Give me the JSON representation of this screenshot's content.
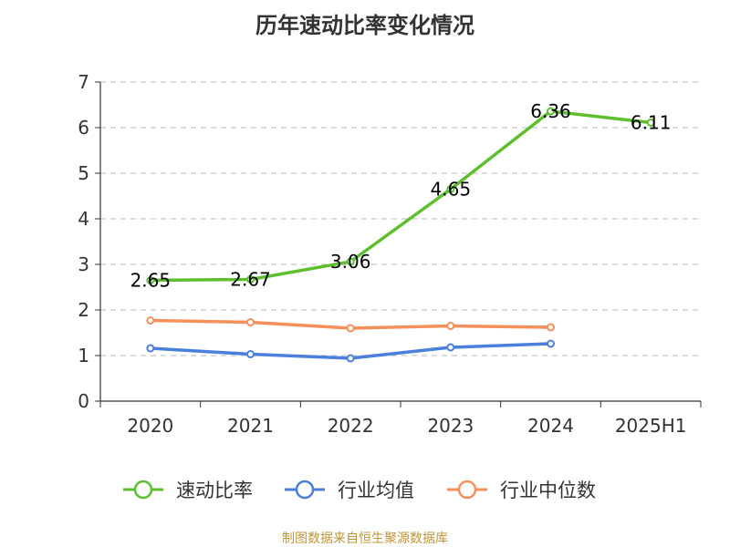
{
  "title": "历年速动比率变化情况",
  "source": "制图数据来自恒生聚源数据库",
  "chart_data": {
    "type": "line",
    "title": "历年速动比率变化情况",
    "xlabel": "",
    "ylabel": "",
    "categories": [
      "2020",
      "2021",
      "2022",
      "2023",
      "2024",
      "2025H1"
    ],
    "ylim": [
      0,
      7
    ],
    "yticks": [
      "0",
      "1",
      "2",
      "3",
      "4",
      "5",
      "6",
      "7"
    ],
    "grid": true,
    "legend_position": "bottom",
    "series": [
      {
        "name": "速动比率",
        "color": "#5dbf2e",
        "values": [
          2.65,
          2.67,
          3.06,
          4.65,
          6.36,
          6.11
        ],
        "labels": [
          "2.65",
          "2.67",
          "3.06",
          "4.65",
          "6.36",
          "6.11"
        ]
      },
      {
        "name": "行业均值",
        "color": "#4a7fdb",
        "values": [
          1.16,
          1.03,
          0.94,
          1.18,
          1.26,
          null
        ]
      },
      {
        "name": "行业中位数",
        "color": "#f5905a",
        "values": [
          1.77,
          1.73,
          1.6,
          1.65,
          1.62,
          null
        ]
      }
    ]
  }
}
